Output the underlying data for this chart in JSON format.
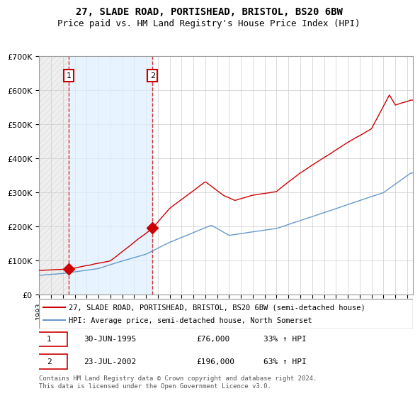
{
  "title1": "27, SLADE ROAD, PORTISHEAD, BRISTOL, BS20 6BW",
  "title2": "Price paid vs. HM Land Registry's House Price Index (HPI)",
  "legend_line1": "27, SLADE ROAD, PORTISHEAD, BRISTOL, BS20 6BW (semi-detached house)",
  "legend_line2": "HPI: Average price, semi-detached house, North Somerset",
  "annotation1_label": "1",
  "annotation1_date": "30-JUN-1995",
  "annotation1_price": "£76,000",
  "annotation1_hpi": "33% ↑ HPI",
  "annotation2_label": "2",
  "annotation2_date": "23-JUL-2002",
  "annotation2_price": "£196,000",
  "annotation2_hpi": "63% ↑ HPI",
  "footnote": "Contains HM Land Registry data © Crown copyright and database right 2024.\nThis data is licensed under the Open Government Licence v3.0.",
  "sale1_x": 1995.5,
  "sale1_y": 76000,
  "sale2_x": 2002.55,
  "sale2_y": 196000,
  "hpi_color": "#6699cc",
  "price_color": "#cc0000",
  "shade_color": "#ddeeff",
  "grid_color": "#cccccc",
  "hatch_color": "#cccccc",
  "ylim": [
    0,
    700000
  ],
  "xlim_start": 1993,
  "xlim_end": 2024.5
}
